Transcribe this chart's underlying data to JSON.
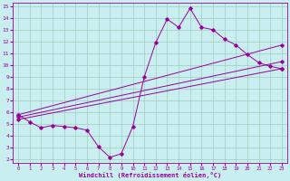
{
  "xlabel": "Windchill (Refroidissement éolien,°C)",
  "xlim": [
    -0.5,
    23.5
  ],
  "ylim": [
    1.7,
    15.3
  ],
  "xticks": [
    0,
    1,
    2,
    3,
    4,
    5,
    6,
    7,
    8,
    9,
    10,
    11,
    12,
    13,
    14,
    15,
    16,
    17,
    18,
    19,
    20,
    21,
    22,
    23
  ],
  "yticks": [
    2,
    3,
    4,
    5,
    6,
    7,
    8,
    9,
    10,
    11,
    12,
    13,
    14,
    15
  ],
  "background_color": "#c8eef0",
  "line_color": "#990099",
  "grid_color": "#a0ccbb",
  "lines": [
    {
      "x": [
        0,
        1,
        2,
        3,
        4,
        5,
        6,
        7,
        8,
        9,
        10,
        11,
        12,
        13,
        14,
        15,
        16,
        17,
        18,
        19,
        20,
        21,
        22,
        23
      ],
      "y": [
        5.8,
        5.2,
        4.7,
        4.9,
        4.8,
        4.7,
        4.5,
        3.1,
        2.2,
        2.5,
        4.8,
        9.0,
        11.9,
        13.9,
        13.2,
        14.8,
        13.2,
        13.0,
        12.2,
        11.7,
        10.9,
        10.2,
        9.9,
        9.7
      ]
    },
    {
      "x": [
        0,
        23
      ],
      "y": [
        5.8,
        9.7
      ]
    },
    {
      "x": [
        0,
        23
      ],
      "y": [
        5.8,
        9.7
      ]
    },
    {
      "x": [
        0,
        19,
        20,
        21,
        22,
        23
      ],
      "y": [
        5.5,
        9.3,
        9.8,
        10.6,
        9.9,
        9.7
      ]
    }
  ],
  "straight_lines": [
    {
      "x": [
        0,
        23
      ],
      "y": [
        5.8,
        11.7
      ]
    },
    {
      "x": [
        0,
        23
      ],
      "y": [
        5.6,
        10.3
      ]
    },
    {
      "x": [
        0,
        23
      ],
      "y": [
        5.4,
        9.7
      ]
    }
  ]
}
